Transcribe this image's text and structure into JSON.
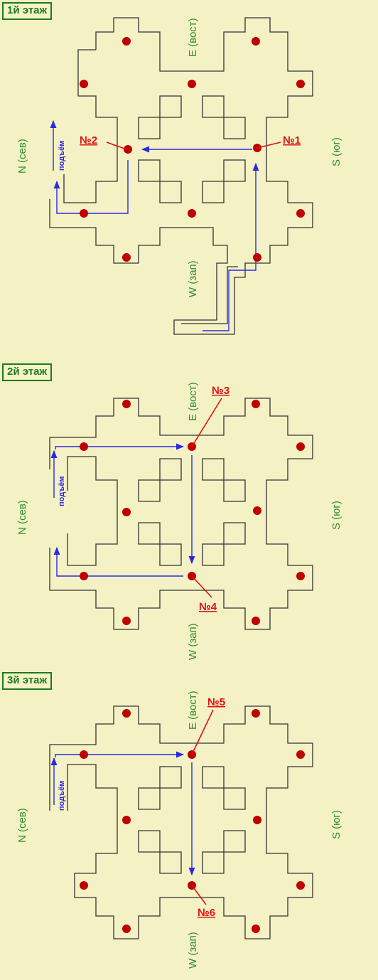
{
  "floors": [
    {
      "title": "1й этаж"
    },
    {
      "title": "2й этаж"
    },
    {
      "title": "3й этаж"
    }
  ],
  "directions": {
    "east": "E (вост)",
    "west": "W (зап)",
    "north": "N (сев)",
    "south": "S (юг)"
  },
  "climb_label": "подъём",
  "markers": [
    "№1",
    "№2",
    "№3",
    "№4",
    "№5",
    "№6"
  ],
  "colors": {
    "background": "#f4f1c5",
    "label_green": "#1f7a1f",
    "route_blue": "#2a2ae0",
    "marker_red": "#c00000",
    "number_red": "#dd1111"
  }
}
